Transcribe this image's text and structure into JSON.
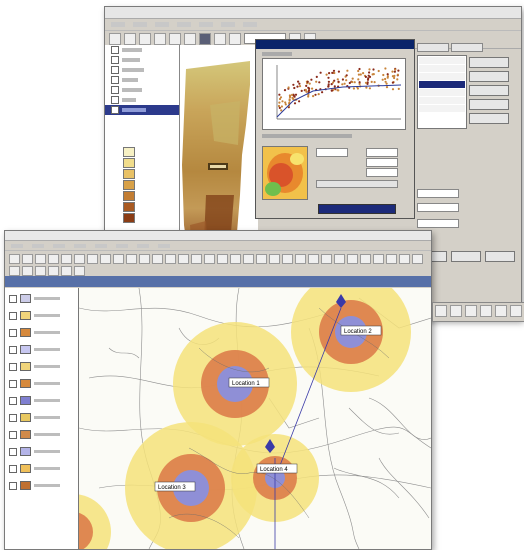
{
  "palette": {
    "titlebar": "#0a246a",
    "buffer_outer": "#f4e27a",
    "buffer_middle": "#dd7d4a",
    "buffer_inner": "#8f8fd6",
    "marker": "#3a3aa8"
  },
  "back_window": {
    "toc_icons": [
      "layer-checkbox",
      "layer-checkbox",
      "layer-checkbox",
      "layer-checkbox",
      "layer-checkbox",
      "layer-checkbox"
    ],
    "ramp_colors": [
      "#f7f1c4",
      "#f1dd8c",
      "#e8c166",
      "#d8a148",
      "#c27d33",
      "#a85a22",
      "#8a3c14"
    ]
  },
  "front_window": {
    "legend_swatches": [
      "#cccce8",
      "#f1d57b",
      "#d6893c",
      "#c7c7f0",
      "#f1d57b",
      "#d6893c",
      "#7f7fd0",
      "#e8c860",
      "#d08a4a",
      "#b4b4e8",
      "#f0c05a",
      "#c07030"
    ],
    "map_labels": [
      {
        "id": "site-a",
        "text": "Location 1"
      },
      {
        "id": "site-b",
        "text": "Location 2"
      },
      {
        "id": "site-c",
        "text": "Location 3"
      },
      {
        "id": "site-d",
        "text": "Location 4"
      }
    ]
  }
}
